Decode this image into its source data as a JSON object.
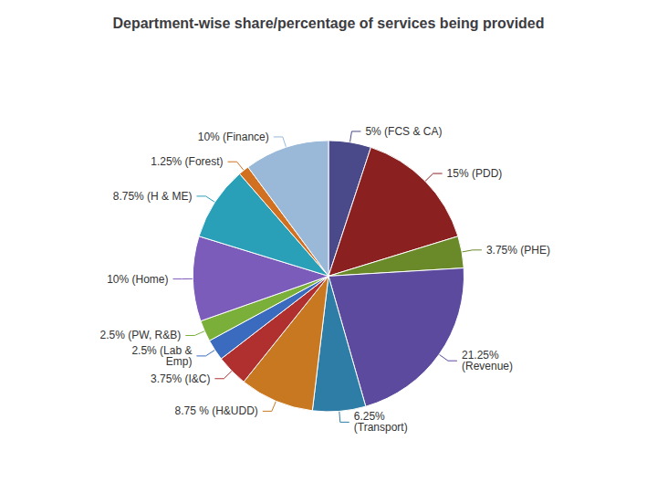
{
  "chart_data": {
    "type": "pie",
    "title": "Department-wise share/percentage of services being provided",
    "categories": [
      "5% (FCS & CA)",
      "15% (PDD)",
      "3.75% (PHE)",
      "21.25%\n(Revenue)",
      "6.25%\n(Transport)",
      "8.75 % (H&UDD)",
      "3.75% (I&C)",
      "2.5% (Lab &\nEmp)",
      "2.5% (PW, R&B)",
      "10% (Home)",
      "8.75% (H & ME)",
      "1.25% (Forest)",
      "10% (Finance)"
    ],
    "values": [
      5.0,
      15.0,
      3.75,
      21.25,
      6.25,
      8.75,
      3.75,
      2.5,
      2.5,
      10.0,
      8.75,
      1.25,
      10.0
    ],
    "colors": [
      "#4a4a8a",
      "#8b2020",
      "#6a8a2a",
      "#5b4a9e",
      "#2e7da6",
      "#c87820",
      "#b03030",
      "#3a6bbf",
      "#7ab03a",
      "#7c5cba",
      "#2aa0b8",
      "#d07020",
      "#9ab8d8"
    ]
  }
}
